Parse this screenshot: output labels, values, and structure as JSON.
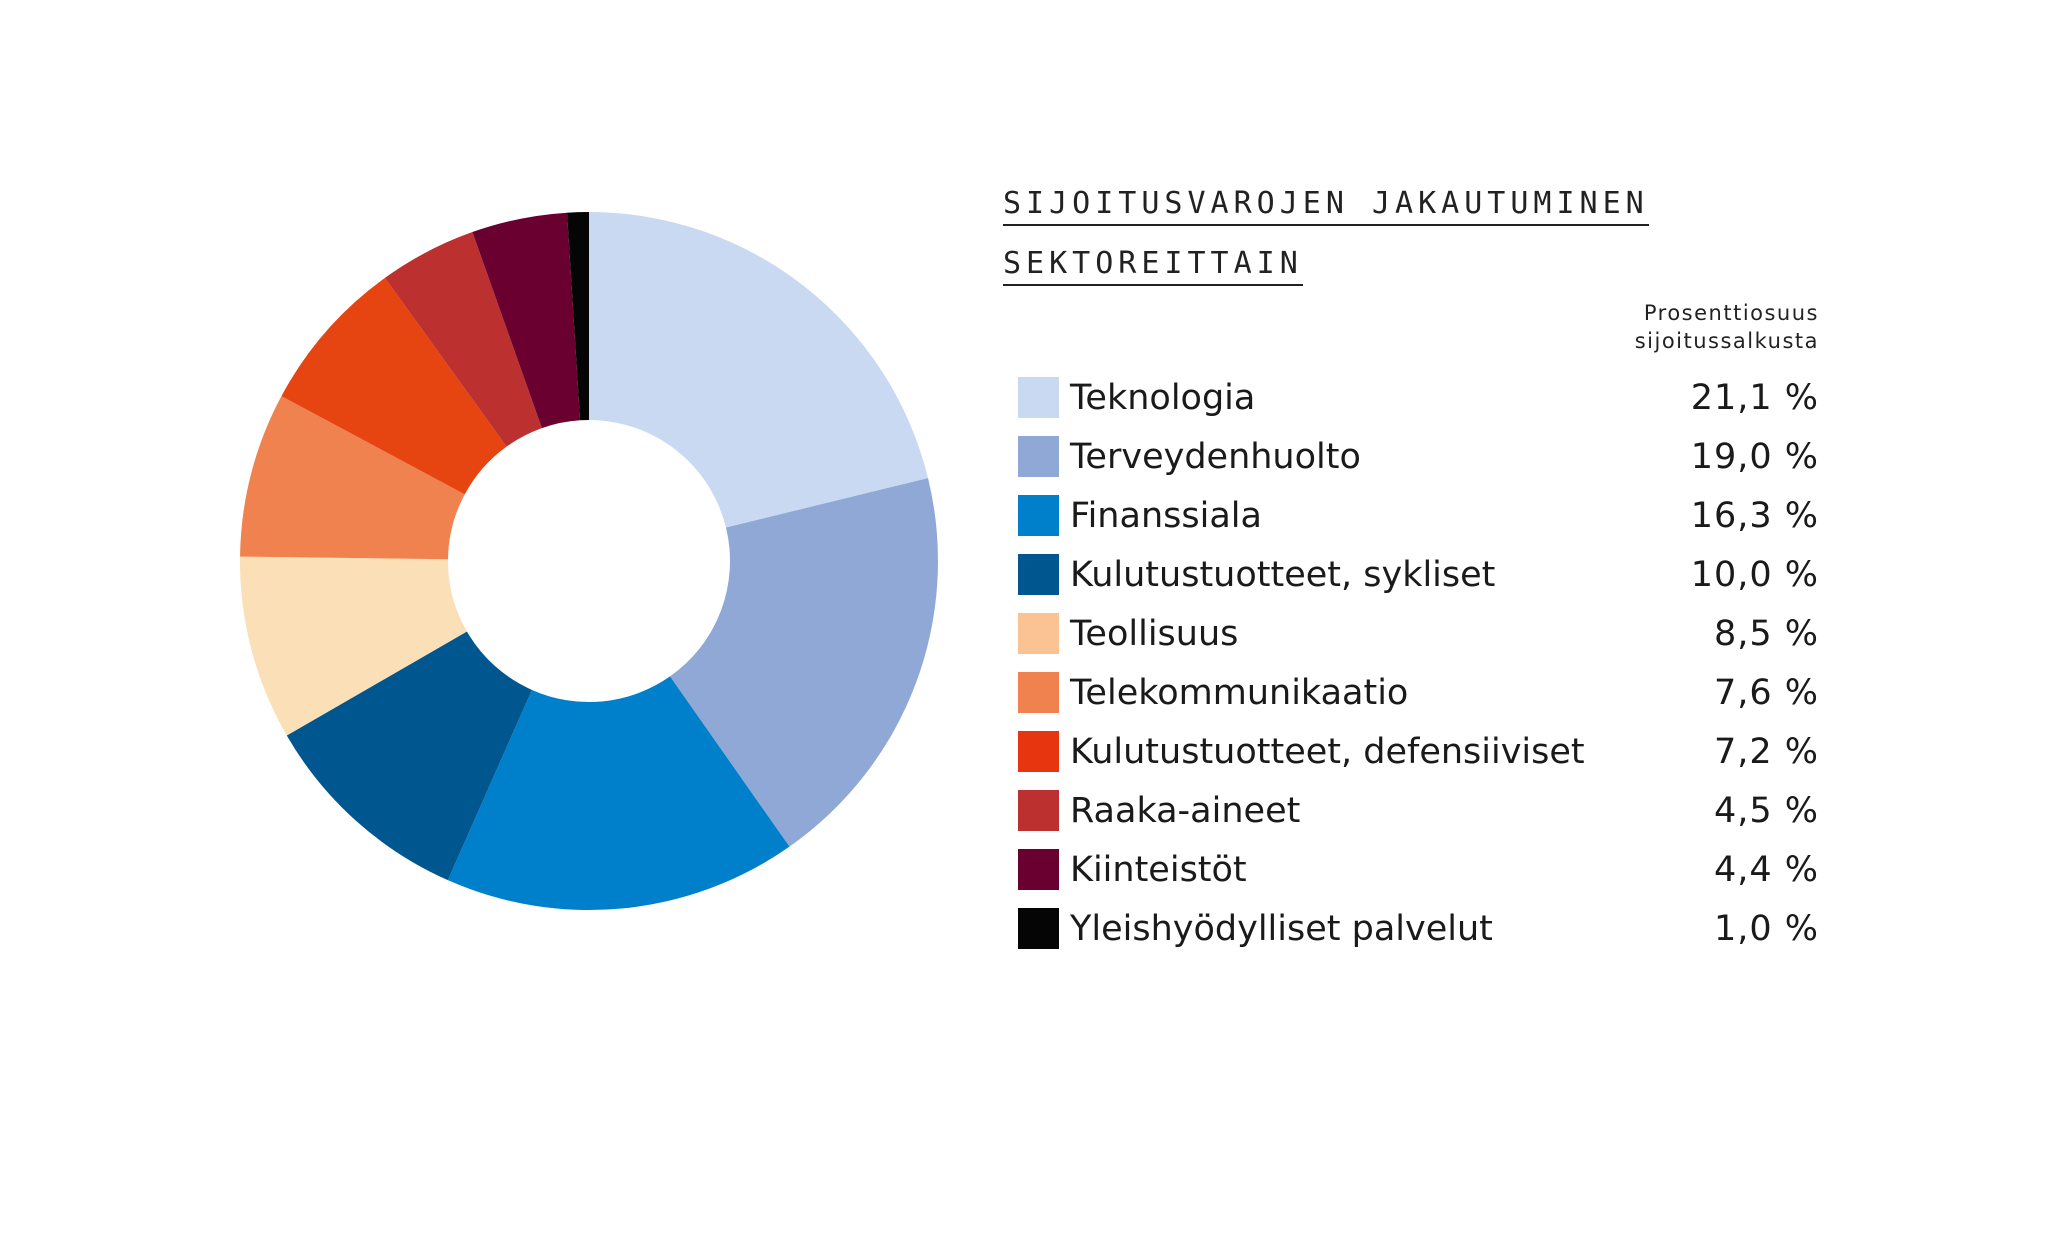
{
  "chart_data": {
    "type": "pie",
    "title_lines": [
      "SIJOITUSVAROJEN JAKAUTUMINEN",
      "SEKTOREITTAIN"
    ],
    "value_header_lines": [
      "Prosenttiosuus",
      "sijoitussalkusta"
    ],
    "slices": [
      {
        "label": "Teknologia",
        "value": 21.1,
        "display": "21,1 %",
        "color": "#c9d9f2"
      },
      {
        "label": "Terveydenhuolto",
        "value": 19.0,
        "display": "19,0 %",
        "color": "#8fa8d6"
      },
      {
        "label": "Finanssiala",
        "value": 16.3,
        "display": "16,3 %",
        "color": "#0080cb"
      },
      {
        "label": "Kulutustuotteet, sykliset",
        "value": 10.0,
        "display": "10,0 %",
        "color": "#005790"
      },
      {
        "label": "Teollisuus",
        "value": 8.5,
        "display": "8,5 %",
        "color": "#fbdfb6"
      },
      {
        "label": "Telekommunikaatio",
        "value": 7.6,
        "display": "7,6 %",
        "color": "#f08250"
      },
      {
        "label": "Kulutustuotteet, defensiiviset",
        "value": 7.2,
        "display": "7,2 %",
        "color": "#e64512"
      },
      {
        "label": "Raaka-aineet",
        "value": 4.5,
        "display": "4,5 %",
        "color": "#bc3030"
      },
      {
        "label": "Kiinteistöt",
        "value": 4.4,
        "display": "4,4 %",
        "color": "#6a0030"
      },
      {
        "label": "Yleishyödylliset palvelut",
        "value": 1.0,
        "display": "1,0 %",
        "color": "#050505"
      }
    ],
    "legend_swatch_colors": [
      "#c9d9f2",
      "#8fa8d6",
      "#0080cb",
      "#005790",
      "#fbc393",
      "#f08250",
      "#e6350f",
      "#bc3030",
      "#6a0030",
      "#050505"
    ]
  }
}
